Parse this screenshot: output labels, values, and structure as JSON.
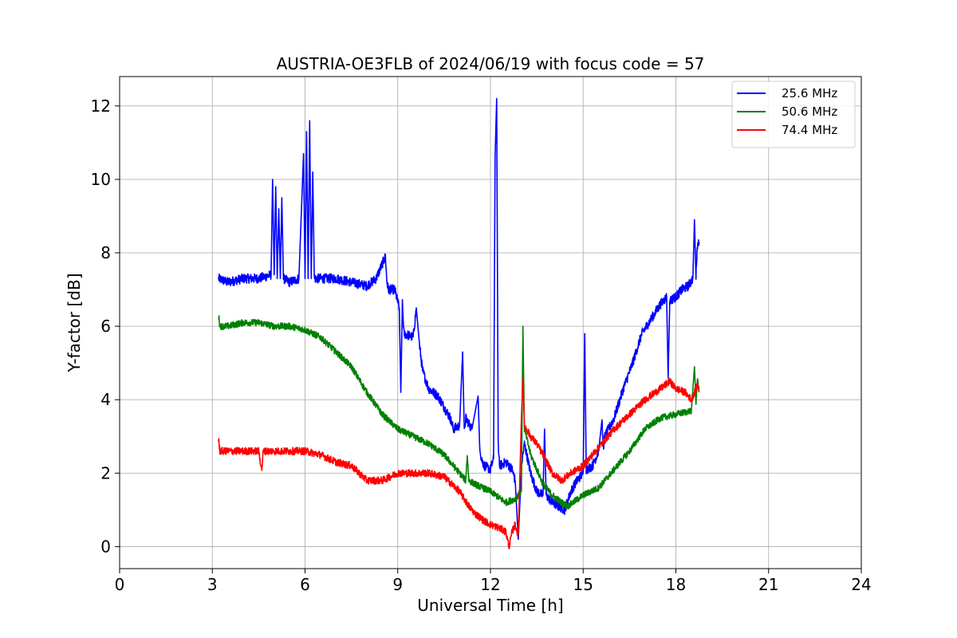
{
  "chart_data": {
    "type": "line",
    "title": "AUSTRIA-OE3FLB of 2024/06/19 with focus code = 57",
    "xlabel": "Universal Time [h]",
    "ylabel": "Y-factor [dB]",
    "xlim": [
      0,
      24
    ],
    "ylim": [
      -0.6,
      12.8
    ],
    "xticks": [
      0,
      3,
      6,
      9,
      12,
      15,
      18,
      21,
      24
    ],
    "yticks": [
      0,
      2,
      4,
      6,
      8,
      10,
      12
    ],
    "grid": true,
    "legend_position": "top-right",
    "series": [
      {
        "name": "25.6 MHz",
        "color": "#0000ff",
        "x": [
          3.2,
          3.5,
          4.0,
          4.5,
          4.9,
          4.95,
          5.0,
          5.05,
          5.1,
          5.15,
          5.2,
          5.25,
          5.3,
          5.5,
          5.8,
          5.95,
          6.0,
          6.05,
          6.1,
          6.15,
          6.2,
          6.25,
          6.3,
          6.35,
          6.5,
          7.0,
          7.5,
          8.0,
          8.3,
          8.6,
          8.65,
          8.7,
          8.9,
          9.05,
          9.1,
          9.15,
          9.2,
          9.5,
          9.6,
          9.7,
          9.8,
          10.0,
          10.3,
          10.5,
          10.7,
          10.8,
          11.0,
          11.1,
          11.15,
          11.2,
          11.4,
          11.6,
          11.65,
          11.7,
          11.8,
          12.0,
          12.1,
          12.15,
          12.2,
          12.25,
          12.3,
          12.5,
          12.7,
          12.8,
          12.9,
          13.0,
          13.1,
          13.3,
          13.5,
          13.7,
          13.75,
          13.8,
          14.0,
          14.2,
          14.4,
          14.6,
          14.8,
          15.0,
          15.05,
          15.1,
          15.3,
          15.5,
          15.6,
          15.65,
          15.7,
          16.0,
          16.3,
          16.6,
          16.9,
          17.2,
          17.5,
          17.7,
          17.75,
          17.8,
          18.0,
          18.2,
          18.4,
          18.55,
          18.6,
          18.65,
          18.7,
          18.75
        ],
        "y": [
          7.3,
          7.2,
          7.3,
          7.3,
          7.4,
          10.0,
          7.4,
          9.8,
          7.3,
          9.2,
          7.3,
          9.5,
          7.3,
          7.2,
          7.3,
          10.7,
          7.3,
          11.3,
          7.3,
          11.6,
          7.3,
          10.2,
          7.3,
          7.3,
          7.3,
          7.3,
          7.2,
          7.1,
          7.3,
          7.9,
          7.2,
          7.0,
          7.0,
          6.5,
          4.2,
          6.6,
          5.8,
          5.7,
          6.5,
          5.5,
          4.8,
          4.3,
          4.1,
          3.8,
          3.5,
          3.2,
          3.3,
          5.3,
          3.1,
          3.5,
          3.2,
          4.1,
          2.8,
          2.4,
          2.2,
          2.1,
          2.4,
          10.6,
          12.2,
          2.8,
          2.2,
          2.3,
          2.1,
          1.8,
          0.2,
          2.2,
          2.8,
          2.0,
          1.5,
          1.4,
          3.2,
          1.4,
          1.2,
          1.1,
          1.0,
          1.5,
          1.8,
          2.0,
          5.8,
          2.1,
          2.2,
          2.6,
          3.5,
          2.7,
          3.0,
          3.5,
          4.3,
          5.0,
          5.8,
          6.2,
          6.6,
          6.8,
          4.6,
          6.7,
          6.8,
          7.0,
          7.1,
          7.3,
          8.9,
          7.4,
          8.2,
          8.3
        ]
      },
      {
        "name": "50.6 MHz",
        "color": "#008000",
        "x": [
          3.2,
          3.25,
          3.5,
          4.0,
          4.5,
          5.0,
          5.5,
          6.0,
          6.5,
          7.0,
          7.5,
          8.0,
          8.5,
          9.0,
          9.5,
          10.0,
          10.5,
          11.0,
          11.2,
          11.25,
          11.3,
          11.5,
          12.0,
          12.5,
          12.8,
          13.0,
          13.05,
          13.1,
          13.3,
          13.7,
          14.0,
          14.3,
          14.5,
          15.0,
          15.5,
          16.0,
          16.5,
          17.0,
          17.5,
          18.0,
          18.5,
          18.6,
          18.65,
          18.7,
          18.75
        ],
        "y": [
          6.3,
          6.0,
          6.0,
          6.1,
          6.1,
          6.0,
          6.0,
          5.9,
          5.7,
          5.3,
          4.9,
          4.2,
          3.6,
          3.2,
          3.0,
          2.8,
          2.5,
          2.0,
          1.8,
          2.5,
          1.8,
          1.7,
          1.5,
          1.2,
          1.3,
          1.5,
          6.0,
          3.2,
          2.5,
          1.7,
          1.4,
          1.2,
          1.1,
          1.4,
          1.6,
          2.1,
          2.6,
          3.2,
          3.5,
          3.6,
          3.7,
          4.9,
          3.8,
          4.6,
          4.2
        ]
      },
      {
        "name": "74.4 MHz",
        "color": "#ff0000",
        "x": [
          3.2,
          3.25,
          3.5,
          4.0,
          4.5,
          4.6,
          4.65,
          5.0,
          5.5,
          6.0,
          6.5,
          7.0,
          7.5,
          8.0,
          8.5,
          9.0,
          9.5,
          10.0,
          10.5,
          11.0,
          11.3,
          11.5,
          11.8,
          12.0,
          12.3,
          12.5,
          12.6,
          12.7,
          12.8,
          12.9,
          13.0,
          13.05,
          13.1,
          13.3,
          13.5,
          13.7,
          14.0,
          14.3,
          14.6,
          15.0,
          15.5,
          16.0,
          16.5,
          17.0,
          17.5,
          17.8,
          18.0,
          18.3,
          18.5,
          18.7,
          18.75
        ],
        "y": [
          2.9,
          2.6,
          2.6,
          2.6,
          2.6,
          2.1,
          2.6,
          2.6,
          2.6,
          2.6,
          2.5,
          2.3,
          2.2,
          1.8,
          1.8,
          2.0,
          2.0,
          2.0,
          1.9,
          1.5,
          1.1,
          0.9,
          0.7,
          0.6,
          0.5,
          0.4,
          0.0,
          0.4,
          0.6,
          0.3,
          3.5,
          4.6,
          3.3,
          3.0,
          2.8,
          2.5,
          2.0,
          1.8,
          2.0,
          2.2,
          2.7,
          3.2,
          3.6,
          4.0,
          4.3,
          4.5,
          4.3,
          4.2,
          4.0,
          4.4,
          4.3
        ]
      }
    ]
  }
}
